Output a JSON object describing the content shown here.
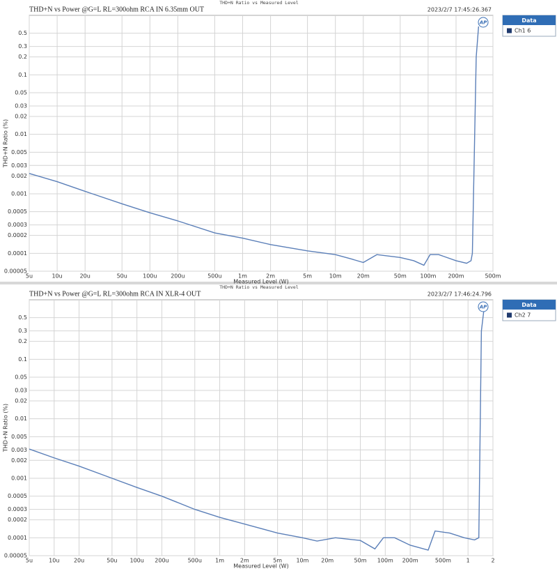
{
  "chart_data": [
    {
      "type": "line",
      "header": "THD+N Ratio vs Measured Level",
      "title": "THD+N vs Power @G=L RL=300ohm RCA IN 6.35mm OUT",
      "timestamp": "2023/2/7 17:45:26.367",
      "logo": "AP",
      "x_label": "Measured Level (W)",
      "y_label": "THD+N Ratio (%)",
      "legend_title": "Data",
      "log_x": true,
      "log_y": true,
      "grid": true,
      "x": [
        5e-06,
        1e-05,
        2e-05,
        5e-05,
        0.0001,
        0.0002,
        0.0005,
        0.001,
        0.002,
        0.005,
        0.01,
        0.015,
        0.02,
        0.028,
        0.05,
        0.07,
        0.09,
        0.105,
        0.13,
        0.2,
        0.26,
        0.29,
        0.3,
        0.33,
        0.35
      ],
      "series": [
        {
          "name": "Ch1 6",
          "color": "#5b7fb8",
          "values": [
            0.0022,
            0.0016,
            0.0011,
            0.00068,
            0.00048,
            0.00035,
            0.00022,
            0.00018,
            0.00014,
            0.00011,
            9.5e-05,
            8e-05,
            7e-05,
            9.5e-05,
            8.5e-05,
            7.5e-05,
            6.3e-05,
            9.5e-05,
            9.5e-05,
            7.5e-05,
            6.8e-05,
            7.5e-05,
            0.0001,
            0.2,
            0.65
          ]
        }
      ],
      "xlim": [
        5e-06,
        0.5
      ],
      "ylim": [
        5e-05,
        1
      ],
      "xticks": [
        {
          "value": 5e-06,
          "label": "5u"
        },
        {
          "value": 1e-05,
          "label": "10u"
        },
        {
          "value": 2e-05,
          "label": "20u"
        },
        {
          "value": 5e-05,
          "label": "50u"
        },
        {
          "value": 0.0001,
          "label": "100u"
        },
        {
          "value": 0.0002,
          "label": "200u"
        },
        {
          "value": 0.0005,
          "label": "500u"
        },
        {
          "value": 0.001,
          "label": "1m"
        },
        {
          "value": 0.002,
          "label": "2m"
        },
        {
          "value": 0.005,
          "label": "5m"
        },
        {
          "value": 0.01,
          "label": "10m"
        },
        {
          "value": 0.02,
          "label": "20m"
        },
        {
          "value": 0.05,
          "label": "50m"
        },
        {
          "value": 0.1,
          "label": "100m"
        },
        {
          "value": 0.2,
          "label": "200m"
        },
        {
          "value": 0.5,
          "label": "500m"
        }
      ],
      "yticks": [
        0.5,
        0.3,
        0.2,
        0.1,
        0.05,
        0.03,
        0.02,
        0.01,
        0.005,
        0.003,
        0.002,
        0.001,
        0.0005,
        0.0003,
        0.0002,
        0.0001,
        5e-05
      ]
    },
    {
      "type": "line",
      "header": "THD+N Ratio vs Measured Level",
      "title": "THD+N vs Power @G=L RL=300ohm RCA IN XLR-4 OUT",
      "timestamp": "2023/2/7 17:46:24.796",
      "logo": "AP",
      "x_label": "Measured Level (W)",
      "y_label": "THD+N Ratio (%)",
      "legend_title": "Data",
      "log_x": true,
      "log_y": true,
      "grid": true,
      "x": [
        5e-06,
        1e-05,
        2e-05,
        5e-05,
        0.0001,
        0.0002,
        0.0005,
        0.001,
        0.002,
        0.005,
        0.01,
        0.015,
        0.025,
        0.05,
        0.075,
        0.095,
        0.13,
        0.2,
        0.33,
        0.4,
        0.6,
        0.9,
        1.2,
        1.35,
        1.45,
        1.55
      ],
      "series": [
        {
          "name": "Ch2 7",
          "color": "#5b7fb8",
          "values": [
            0.0031,
            0.0022,
            0.0016,
            0.001,
            0.0007,
            0.0005,
            0.0003,
            0.00022,
            0.00017,
            0.00012,
            0.0001,
            8.8e-05,
            0.0001,
            9e-05,
            6.5e-05,
            0.0001,
            0.0001,
            7.5e-05,
            6.2e-05,
            0.00013,
            0.00012,
            0.0001,
            9.2e-05,
            0.0001,
            0.3,
            0.65
          ]
        }
      ],
      "xlim": [
        5e-06,
        2
      ],
      "ylim": [
        5e-05,
        1
      ],
      "xticks": [
        {
          "value": 5e-06,
          "label": "5u"
        },
        {
          "value": 1e-05,
          "label": "10u"
        },
        {
          "value": 2e-05,
          "label": "20u"
        },
        {
          "value": 5e-05,
          "label": "50u"
        },
        {
          "value": 0.0001,
          "label": "100u"
        },
        {
          "value": 0.0002,
          "label": "200u"
        },
        {
          "value": 0.0005,
          "label": "500u"
        },
        {
          "value": 0.001,
          "label": "1m"
        },
        {
          "value": 0.002,
          "label": "2m"
        },
        {
          "value": 0.005,
          "label": "5m"
        },
        {
          "value": 0.01,
          "label": "10m"
        },
        {
          "value": 0.02,
          "label": "20m"
        },
        {
          "value": 0.05,
          "label": "50m"
        },
        {
          "value": 0.1,
          "label": "100m"
        },
        {
          "value": 0.2,
          "label": "200m"
        },
        {
          "value": 0.5,
          "label": "500m"
        },
        1,
        2
      ],
      "yticks": [
        0.5,
        0.3,
        0.2,
        0.1,
        0.05,
        0.03,
        0.02,
        0.01,
        0.005,
        0.003,
        0.002,
        0.001,
        0.0005,
        0.0003,
        0.0002,
        0.0001,
        5e-05
      ]
    }
  ]
}
